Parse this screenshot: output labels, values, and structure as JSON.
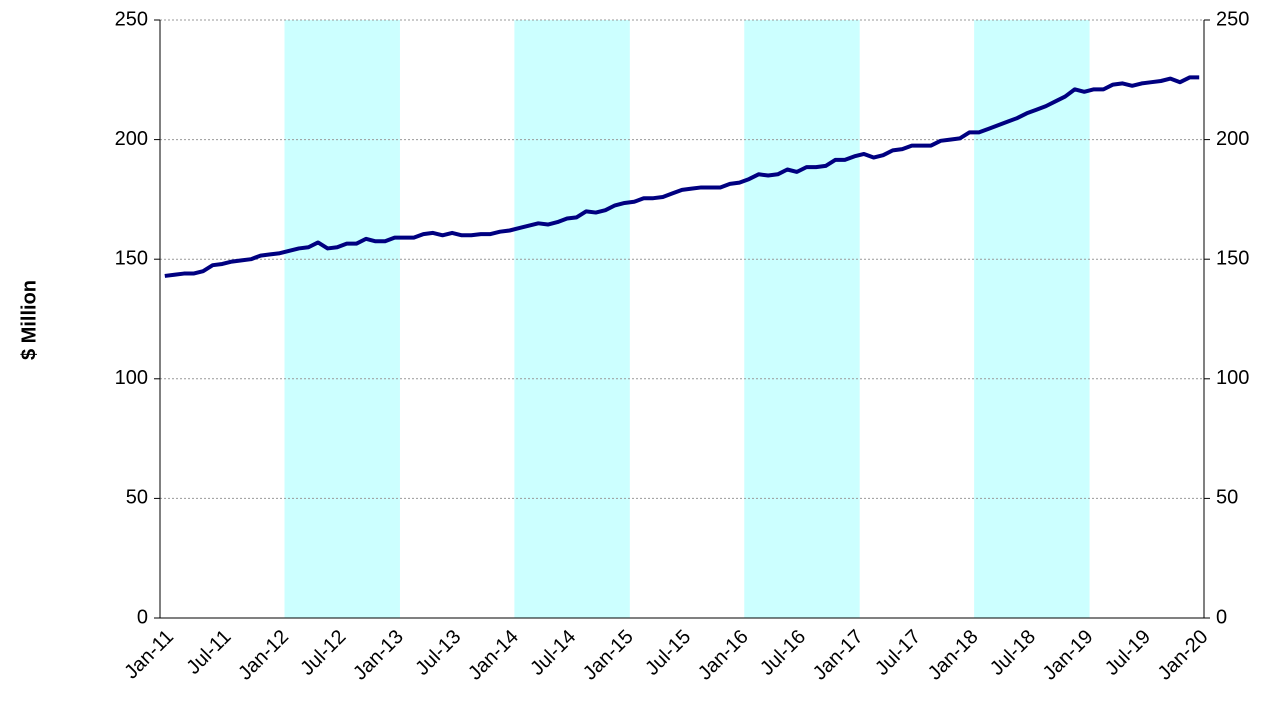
{
  "chart_data": {
    "type": "line",
    "y_label": "$ Million",
    "categories": [
      "Jan-11",
      null,
      null,
      null,
      null,
      null,
      "Jul-11",
      null,
      null,
      null,
      null,
      null,
      "Jan-12",
      null,
      null,
      null,
      null,
      null,
      "Jul-12",
      null,
      null,
      null,
      null,
      null,
      "Jan-13",
      null,
      null,
      null,
      null,
      null,
      "Jul-13",
      null,
      null,
      null,
      null,
      null,
      "Jan-14",
      null,
      null,
      null,
      null,
      null,
      "Jul-14",
      null,
      null,
      null,
      null,
      null,
      "Jan-15",
      null,
      null,
      null,
      null,
      null,
      "Jul-15",
      null,
      null,
      null,
      null,
      null,
      "Jan-16",
      null,
      null,
      null,
      null,
      null,
      "Jul-16",
      null,
      null,
      null,
      null,
      null,
      "Jan-17",
      null,
      null,
      null,
      null,
      null,
      "Jul-17",
      null,
      null,
      null,
      null,
      null,
      "Jan-18",
      null,
      null,
      null,
      null,
      null,
      "Jul-18",
      null,
      null,
      null,
      null,
      null,
      "Jan-19",
      null,
      null,
      null,
      null,
      null,
      "Jul-19",
      null,
      null,
      null,
      null,
      null,
      "Jan-20"
    ],
    "series": [
      {
        "color": "#000080",
        "values": [
          143,
          143.5,
          144,
          144,
          145,
          147.5,
          148,
          149,
          149.5,
          150,
          151.5,
          152,
          152.5,
          153.5,
          154.5,
          155,
          157,
          154.5,
          155,
          156.5,
          156.5,
          158.5,
          157.5,
          157.5,
          159,
          159,
          159,
          160.5,
          161,
          160,
          161,
          160,
          160,
          160.5,
          160.5,
          161.5,
          162,
          163,
          164,
          165,
          164.5,
          165.5,
          167,
          167.5,
          170,
          169.5,
          170.5,
          172.5,
          173.5,
          174,
          175.5,
          175.5,
          176,
          177.5,
          179,
          179.5,
          180,
          180,
          180,
          181.5,
          182,
          183.5,
          185.5,
          185,
          185.5,
          187.5,
          186.5,
          188.5,
          188.5,
          189,
          191.5,
          191.5,
          193,
          194,
          192.5,
          193.5,
          195.5,
          196,
          197.5,
          197.5,
          197.5,
          199.5,
          200,
          200.5,
          203,
          203,
          204.5,
          206,
          207.5,
          209,
          211,
          212.5,
          214,
          216,
          218,
          221,
          220,
          221,
          221,
          223,
          223.5,
          222.5,
          223.5,
          224,
          224.5,
          225.5,
          224,
          226,
          226
        ]
      }
    ],
    "shading": {
      "color": "#ccffff",
      "values": [
        null,
        null,
        null,
        null,
        null,
        null,
        null,
        null,
        null,
        null,
        null,
        null,
        null,
        250,
        250,
        250,
        250,
        250,
        250,
        250,
        250,
        250,
        250,
        250,
        250,
        null,
        null,
        null,
        null,
        null,
        null,
        null,
        null,
        null,
        null,
        null,
        null,
        250,
        250,
        250,
        250,
        250,
        250,
        250,
        250,
        250,
        250,
        250,
        250,
        null,
        null,
        null,
        null,
        null,
        null,
        null,
        null,
        null,
        null,
        null,
        null,
        250,
        250,
        250,
        250,
        250,
        250,
        250,
        250,
        250,
        250,
        250,
        250,
        null,
        null,
        null,
        null,
        null,
        null,
        null,
        null,
        null,
        null,
        null,
        null,
        250,
        250,
        250,
        250,
        250,
        250,
        250,
        250,
        250,
        250,
        250,
        250,
        null,
        null,
        null,
        null,
        null,
        null,
        null,
        null,
        null,
        null,
        null,
        null
      ]
    },
    "ylim": [
      0,
      250
    ],
    "yticks": [
      0,
      50,
      100,
      150,
      200,
      250
    ],
    "y2lim": [
      0,
      250
    ],
    "y2ticks": [
      0,
      50,
      100,
      150,
      200,
      250
    ],
    "grid": true
  }
}
